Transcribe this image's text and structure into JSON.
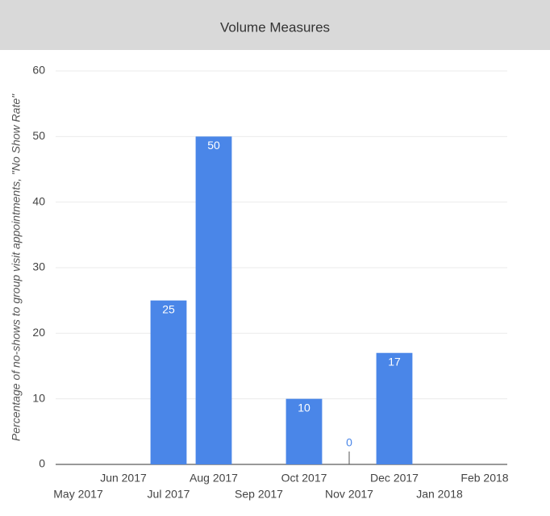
{
  "chart_data": {
    "type": "bar",
    "title": "Volume Measures",
    "y_label": "Percentage of no-shows to group visit appointments, \"No Show Rate\"",
    "categories": [
      "May 2017",
      "Jun 2017",
      "Jul 2017",
      "Aug 2017",
      "Sep 2017",
      "Oct 2017",
      "Nov 2017",
      "Dec 2017",
      "Jan 2018",
      "Feb 2018"
    ],
    "values": [
      null,
      null,
      25,
      50,
      null,
      10,
      0,
      17,
      null,
      null
    ],
    "color": "#4a86e8",
    "ylim": [
      0,
      60
    ],
    "yticks": [
      0,
      10,
      20,
      30,
      40,
      50,
      60
    ],
    "grid": true
  }
}
